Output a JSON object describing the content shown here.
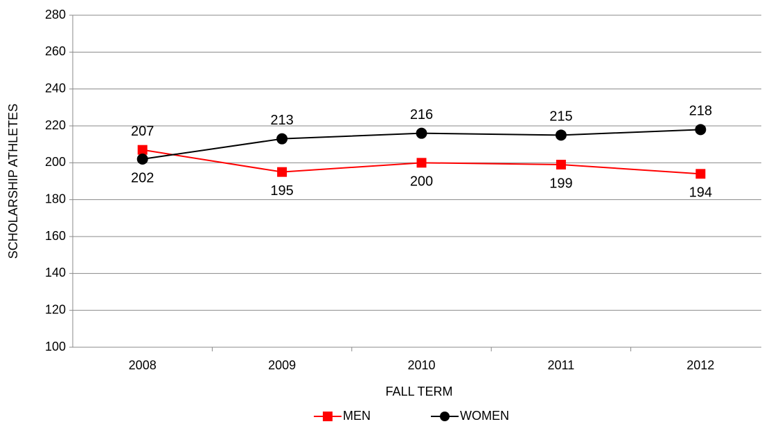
{
  "chart_data": {
    "type": "line",
    "x_label": "FALL TERM",
    "y_label": "SCHOLARSHIP ATHLETES",
    "categories": [
      "2008",
      "2009",
      "2010",
      "2011",
      "2012"
    ],
    "series": [
      {
        "name": "MEN",
        "color": "#ff0000",
        "marker": "square",
        "values": [
          207,
          195,
          200,
          199,
          194
        ]
      },
      {
        "name": "WOMEN",
        "color": "#000000",
        "marker": "circle",
        "values": [
          202,
          213,
          216,
          215,
          218
        ]
      }
    ],
    "ylim": [
      100,
      280
    ],
    "yticks": [
      100,
      120,
      140,
      160,
      180,
      200,
      220,
      240,
      260,
      280
    ],
    "grid": true,
    "legend": "bottom"
  }
}
